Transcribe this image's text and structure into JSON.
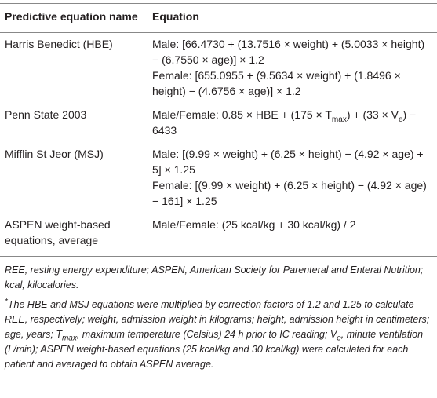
{
  "table": {
    "header": [
      "Predictive equation name",
      "Equation"
    ],
    "rows": [
      {
        "name": "Harris Benedict (HBE)",
        "equations": [
          [
            "Male: [66.4730 + (13.7516 × weight) + (5.0033 × height) − (6.7550 × age)] × 1.2"
          ],
          [
            "Female: [655.0955 + (9.5634 × weight) + (1.8496 × height) − (4.6756 × age)] × 1.2"
          ]
        ]
      },
      {
        "name": "Penn State 2003",
        "equations": [
          [
            "Male/Female: 0.85 × HBE + (175 × T",
            {
              "sub": "max"
            },
            ") + (33 × V",
            {
              "sub": "e"
            },
            ") − 6433"
          ]
        ]
      },
      {
        "name": "Mifflin St Jeor (MSJ)",
        "equations": [
          [
            "Male: [(9.99 × weight) + (6.25 × height) − (4.92 × age) + 5] × 1.25"
          ],
          [
            "Female: [(9.99 × weight) + (6.25 × height) − (4.92 × age) − 161] × 1.25"
          ]
        ]
      },
      {
        "name": "ASPEN weight-based equations, average",
        "equations": [
          [
            "Male/Female: (25 kcal/kg + 30 kcal/kg) / 2"
          ]
        ]
      }
    ]
  },
  "footnotes": [
    [
      "REE, resting energy expenditure; ASPEN, American Society for Parenteral and Enteral Nutrition; kcal, kilocalories."
    ],
    [
      {
        "sup": "*"
      },
      "The HBE and MSJ equations were multiplied by correction factors of 1.2 and 1.25 to calculate REE, respectively; weight, admission weight in kilograms; height, admission height in centimeters; age, years; T",
      {
        "sub": "max"
      },
      ", maximum temperature (Celsius) 24 h prior to IC reading; V",
      {
        "sub": "e"
      },
      ", minute ventilation (L/min); ASPEN weight-based equations (25 kcal/kg and 30 kcal/kg) were calculated for each patient and averaged to obtain ASPEN average."
    ]
  ]
}
